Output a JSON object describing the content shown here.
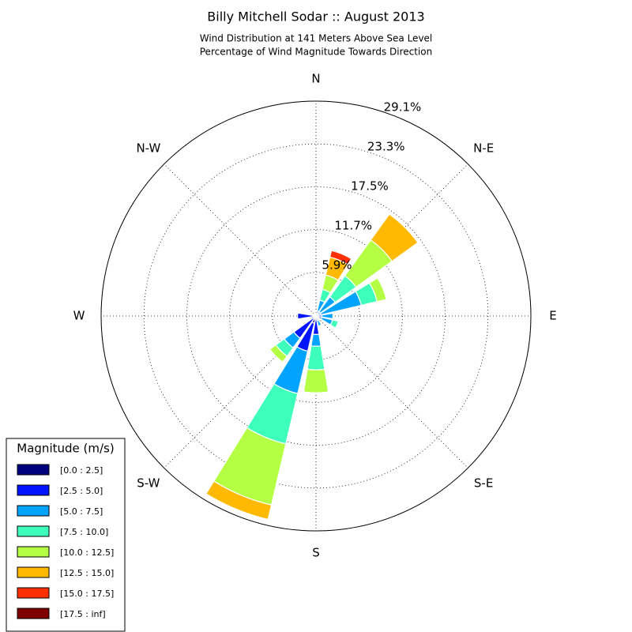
{
  "chart_data": {
    "type": "windrose",
    "title": "Billy Mitchell Sodar :: August 2013",
    "subtitle": [
      "Wind Distribution at 141 Meters Above Sea Level",
      "Percentage of Wind Magnitude Towards Direction"
    ],
    "legend_title": "Magnitude (m/s)",
    "legend_position": "lower left",
    "categories": [
      "N",
      null,
      "N-E",
      null,
      "E",
      null,
      "S-E",
      null,
      "S",
      null,
      "S-W",
      null,
      "W",
      null,
      "N-W",
      null
    ],
    "rlim": [
      0,
      29.1
    ],
    "rticks": [
      {
        "value": 5.9,
        "label": "5.9%"
      },
      {
        "value": 11.7,
        "label": "11.7%"
      },
      {
        "value": 17.5,
        "label": "17.5%"
      },
      {
        "value": 23.3,
        "label": "23.3%"
      },
      {
        "value": 29.1,
        "label": "29.1%"
      }
    ],
    "grid": true,
    "series": [
      {
        "name": "[0.0 : 2.5]",
        "color": "#00007f",
        "values": [
          0.2,
          0.2,
          0.2,
          0.2,
          0.3,
          0.2,
          0.2,
          0.2,
          0.3,
          1.0,
          0.3,
          0.3,
          0.4,
          0.2,
          0.2,
          0.2
        ]
      },
      {
        "name": "[2.5 : 5.0]",
        "color": "#0014ff",
        "values": [
          0.2,
          0.5,
          0.5,
          0.5,
          0.5,
          0.6,
          0.3,
          0.4,
          2.2,
          3.9,
          3.4,
          0.4,
          2.1,
          0.2,
          0.2,
          0.2
        ]
      },
      {
        "name": "[5.0 : 7.5]",
        "color": "#00a4ff",
        "values": [
          0,
          1.5,
          2.5,
          5.6,
          1.5,
          1.5,
          0,
          0.8,
          1.6,
          5.9,
          1.6,
          0,
          0,
          0,
          0,
          0
        ]
      },
      {
        "name": "[7.5 : 10.0]",
        "color": "#3dffba",
        "values": [
          0,
          1.5,
          3.5,
          2.2,
          0,
          0.8,
          0,
          0,
          3.2,
          7.0,
          1.4,
          0,
          0,
          0,
          0,
          0
        ]
      },
      {
        "name": "[10.0 : 12.5]",
        "color": "#b4ff43",
        "values": [
          0,
          2.0,
          6.0,
          1.3,
          0,
          0,
          0,
          0,
          3.1,
          8.5,
          1.0,
          0,
          0,
          0,
          0,
          0
        ]
      },
      {
        "name": "[12.5 : 15.0]",
        "color": "#ffb900",
        "values": [
          0,
          2.5,
          4.3,
          0,
          0,
          0,
          0,
          0,
          0,
          2.0,
          0,
          0,
          0,
          0,
          0,
          0
        ]
      },
      {
        "name": "[15.0 : 17.5]",
        "color": "#ff3000",
        "values": [
          0,
          0.9,
          0,
          0,
          0,
          0,
          0,
          0,
          0,
          0,
          0,
          0,
          0,
          0,
          0,
          0
        ]
      },
      {
        "name": "[17.5 : inf]",
        "color": "#7f0000",
        "values": [
          0,
          0,
          0,
          0,
          0,
          0,
          0,
          0,
          0,
          0,
          0,
          0,
          0,
          0,
          0,
          0
        ]
      }
    ]
  }
}
